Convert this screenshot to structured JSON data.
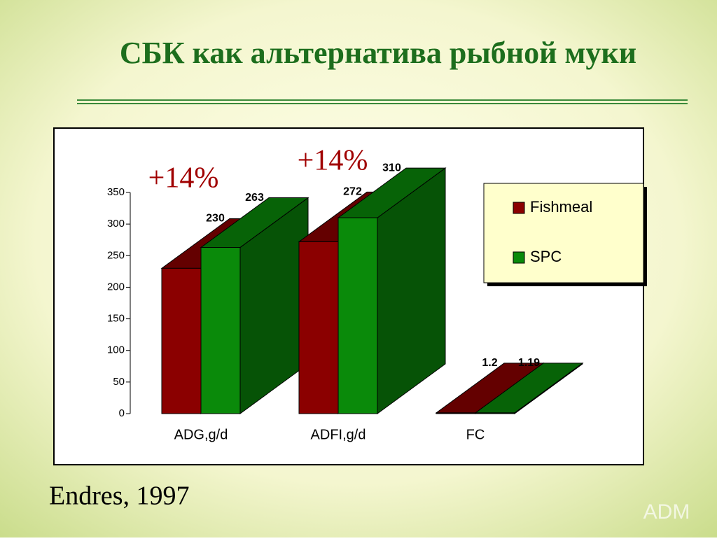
{
  "slide": {
    "title": "СБК как альтернатива рыбной муки",
    "source": "Endres, 1997",
    "logo": "ADM"
  },
  "chart_data": {
    "type": "bar3d",
    "categories": [
      "ADG,g/d",
      "ADFI,g/d",
      "FC"
    ],
    "series": [
      {
        "name": "Fishmeal",
        "color": "#8b0000",
        "values": [
          230,
          272,
          1.2
        ]
      },
      {
        "name": "SPC",
        "color": "#0a8a0a",
        "values": [
          263,
          310,
          1.19
        ]
      }
    ],
    "ylim": [
      0,
      350
    ],
    "yticks": [
      0,
      50,
      100,
      150,
      200,
      250,
      300,
      350
    ],
    "annotations": [
      "+14%",
      "+14%"
    ]
  }
}
